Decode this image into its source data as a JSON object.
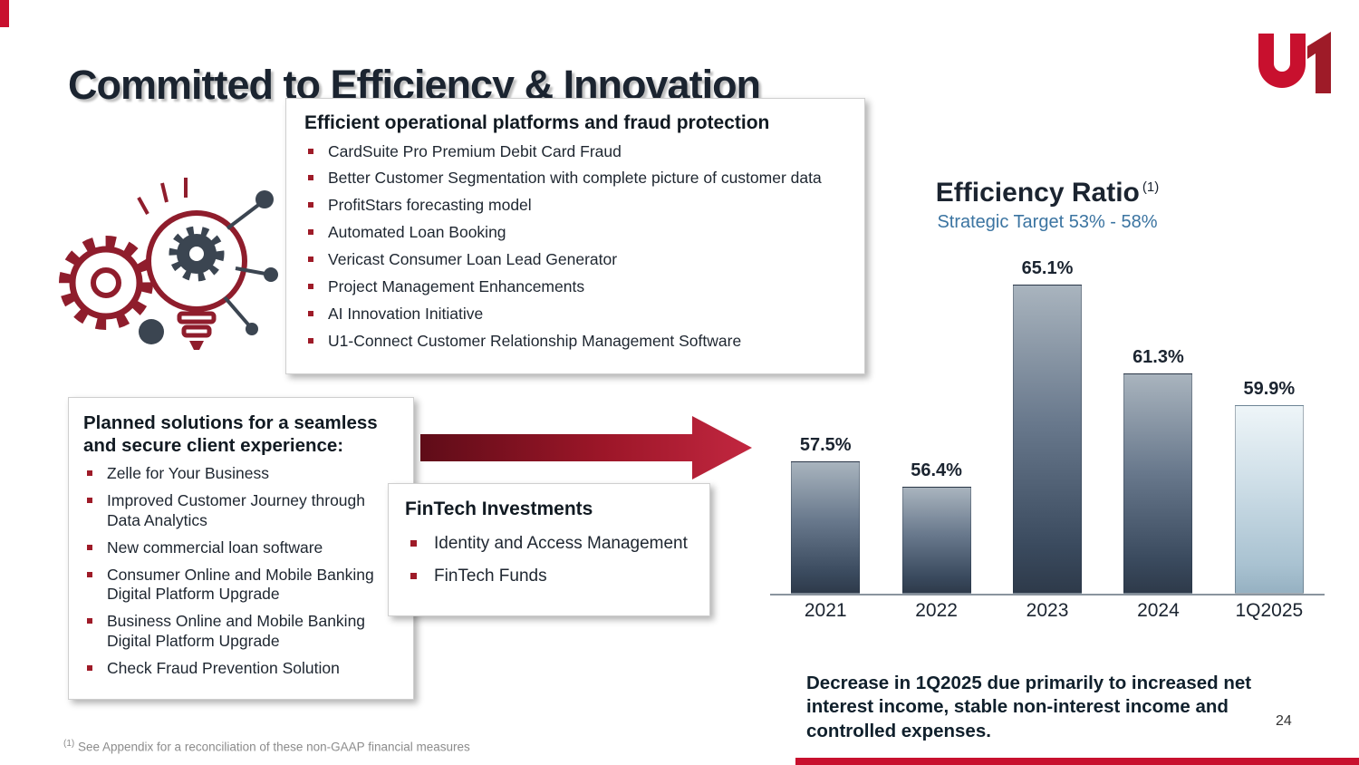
{
  "slide": {
    "title": "Committed to Efficiency & Innovation",
    "page_number": "24",
    "logo_text": "u1"
  },
  "colors": {
    "accent_red": "#c8102e",
    "bullet_red": "#9e1b28",
    "subtitle_blue": "#3b74a1",
    "bar_slate_dark": "#3a4a5e",
    "bar_light_blue": "#cfdfe8",
    "title_dark": "#1b2430"
  },
  "boxes": {
    "operational": {
      "heading": "Efficient operational platforms and fraud protection",
      "items": [
        "CardSuite Pro Premium Debit Card Fraud",
        "Better Customer Segmentation with complete picture of customer data",
        "ProfitStars forecasting model",
        "Automated Loan Booking",
        "Vericast Consumer Loan Lead Generator",
        "Project Management Enhancements",
        "AI Innovation Initiative",
        "U1-Connect Customer Relationship Management Software"
      ]
    },
    "planned": {
      "heading": "Planned solutions for a seamless and secure client experience:",
      "items": [
        "Zelle for Your Business",
        "Improved Customer Journey through Data Analytics",
        "New commercial loan software",
        "Consumer Online and Mobile Banking Digital Platform Upgrade",
        "Business Online and Mobile Banking Digital Platform Upgrade",
        "Check Fraud Prevention Solution"
      ]
    },
    "fintech": {
      "heading": "FinTech Investments",
      "items": [
        "Identity and Access Management",
        "FinTech Funds"
      ]
    }
  },
  "chart_data": {
    "type": "bar",
    "title": "Efficiency Ratio",
    "title_superscript": "(1)",
    "subtitle": "Strategic Target 53% - 58%",
    "categories": [
      "2021",
      "2022",
      "2023",
      "2024",
      "1Q2025"
    ],
    "values": [
      57.5,
      56.4,
      65.1,
      61.3,
      59.9
    ],
    "labels": [
      "57.5%",
      "56.4%",
      "65.1%",
      "61.3%",
      "59.9%"
    ],
    "bar_styles": [
      "dark",
      "dark",
      "dark",
      "dark",
      "light"
    ],
    "ylim": [
      51.8,
      66.9
    ],
    "grid": false,
    "legend": "none"
  },
  "note": "Decrease in 1Q2025 due primarily to increased net interest income, stable non-interest income and controlled expenses.",
  "footnote": {
    "marker": "(1)",
    "text": " See Appendix for a reconciliation of these non-GAAP financial measures"
  }
}
